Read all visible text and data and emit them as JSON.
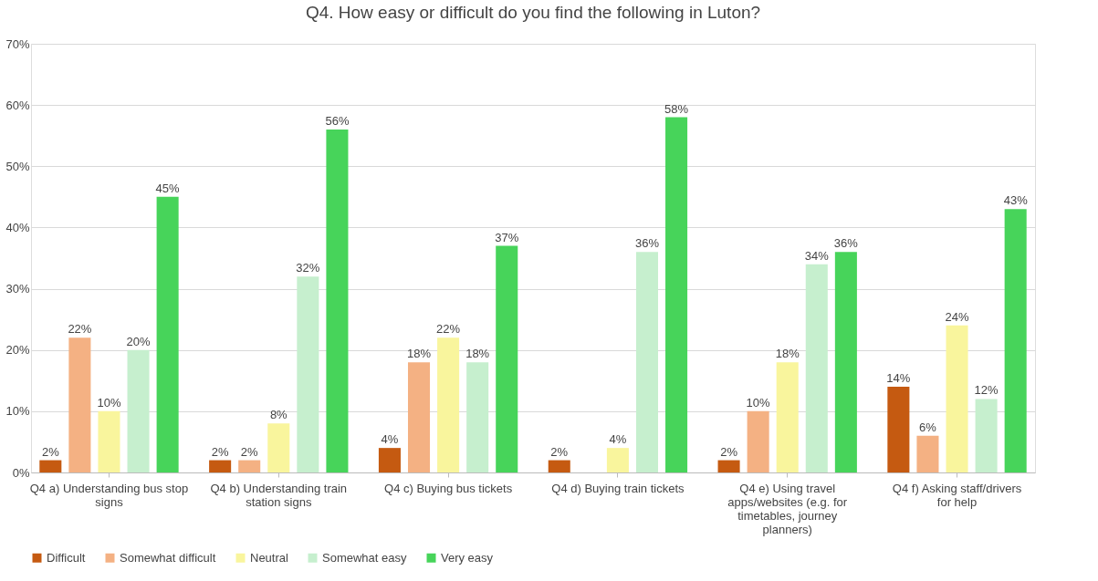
{
  "chart_data": {
    "type": "bar",
    "title": "Q4.  How easy or difficult do you find the following in Luton?",
    "categories": [
      "Q4 a) Understanding bus stop signs",
      "Q4 b) Understanding train station signs",
      "Q4 c) Buying bus tickets",
      "Q4 d) Buying train tickets",
      "Q4 e) Using travel apps/websites (e.g. for timetables, journey planners)",
      "Q4 f) Asking staff/drivers for help"
    ],
    "series": [
      {
        "name": "Difficult",
        "color": "#c55a11",
        "values": [
          2,
          2,
          4,
          2,
          2,
          14
        ],
        "value_labels": [
          "2%",
          "2%",
          "4%",
          "2%",
          "2%",
          "14%"
        ]
      },
      {
        "name": "Somewhat difficult",
        "color": "#f4b183",
        "values": [
          22,
          2,
          18,
          null,
          10,
          6
        ],
        "value_labels": [
          "22%",
          "2%",
          "18%",
          null,
          "10%",
          "6%"
        ]
      },
      {
        "name": "Neutral",
        "color": "#f9f59d",
        "values": [
          10,
          8,
          22,
          4,
          18,
          24
        ],
        "value_labels": [
          "10%",
          "8%",
          "22%",
          "4%",
          "18%",
          "24%"
        ]
      },
      {
        "name": "Somewhat easy",
        "color": "#c6efce",
        "values": [
          20,
          32,
          18,
          36,
          34,
          12
        ],
        "value_labels": [
          "20%",
          "32%",
          "18%",
          "36%",
          "34%",
          "12%"
        ]
      },
      {
        "name": "Very easy",
        "color": "#47d45a",
        "values": [
          45,
          56,
          37,
          58,
          36,
          43
        ],
        "value_labels": [
          "45%",
          "56%",
          "37%",
          "58%",
          "36%",
          "43%"
        ]
      }
    ],
    "ylim": [
      0,
      70
    ],
    "yticks": [
      {
        "value": 0,
        "label": "0%"
      },
      {
        "value": 10,
        "label": "10%"
      },
      {
        "value": 20,
        "label": "20%"
      },
      {
        "value": 30,
        "label": "30%"
      },
      {
        "value": 40,
        "label": "40%"
      },
      {
        "value": 50,
        "label": "50%"
      },
      {
        "value": 60,
        "label": "60%"
      },
      {
        "value": 70,
        "label": "70%"
      }
    ],
    "grid": "y",
    "legend": "bottom"
  }
}
